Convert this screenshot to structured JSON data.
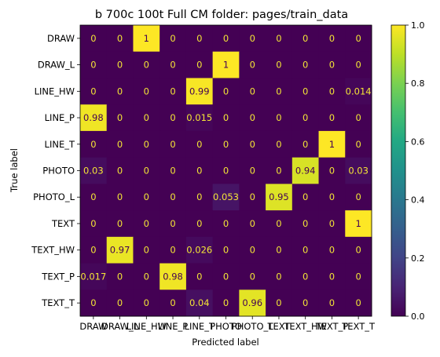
{
  "chart_data": {
    "type": "heatmap",
    "title": "b 700c 100t  Full CM folder: pages/train_data",
    "xlabel": "Predicted label",
    "ylabel": "True label",
    "row_labels": [
      "DRAW",
      "DRAW_L",
      "LINE_HW",
      "LINE_P",
      "LINE_T",
      "PHOTO",
      "PHOTO_L",
      "TEXT",
      "TEXT_HW",
      "TEXT_P",
      "TEXT_T"
    ],
    "col_labels": [
      "DRAW",
      "DRAW_L",
      "LINE_HW",
      "LINE_P",
      "LINE_T",
      "PHOTO",
      "PHOTO_L",
      "TEXT",
      "TEXT_HW",
      "TEXT_P",
      "TEXT_T"
    ],
    "values": [
      [
        0,
        0,
        1,
        0,
        0,
        0,
        0,
        0,
        0,
        0,
        0
      ],
      [
        0,
        0,
        0,
        0,
        0,
        1,
        0,
        0,
        0,
        0,
        0
      ],
      [
        0,
        0,
        0,
        0,
        0.99,
        0,
        0,
        0,
        0,
        0,
        0.014
      ],
      [
        0.98,
        0,
        0,
        0,
        0.015,
        0,
        0,
        0,
        0,
        0,
        0
      ],
      [
        0,
        0,
        0,
        0,
        0,
        0,
        0,
        0,
        0,
        1,
        0
      ],
      [
        0.03,
        0,
        0,
        0,
        0,
        0,
        0,
        0,
        0.94,
        0,
        0.03
      ],
      [
        0,
        0,
        0,
        0,
        0,
        0.053,
        0,
        0.95,
        0,
        0,
        0
      ],
      [
        0,
        0,
        0,
        0,
        0,
        0,
        0,
        0,
        0,
        0,
        1
      ],
      [
        0,
        0.97,
        0,
        0,
        0.026,
        0,
        0,
        0,
        0,
        0,
        0
      ],
      [
        0.017,
        0,
        0,
        0.98,
        0,
        0,
        0,
        0,
        0,
        0,
        0
      ],
      [
        0,
        0,
        0,
        0,
        0.04,
        0,
        0.96,
        0,
        0,
        0,
        0
      ]
    ],
    "cell_text": [
      [
        "0",
        "0",
        "1",
        "0",
        "0",
        "0",
        "0",
        "0",
        "0",
        "0",
        "0"
      ],
      [
        "0",
        "0",
        "0",
        "0",
        "0",
        "1",
        "0",
        "0",
        "0",
        "0",
        "0"
      ],
      [
        "0",
        "0",
        "0",
        "0",
        "0.99",
        "0",
        "0",
        "0",
        "0",
        "0",
        "0.014"
      ],
      [
        "0.98",
        "0",
        "0",
        "0",
        "0.015",
        "0",
        "0",
        "0",
        "0",
        "0",
        "0"
      ],
      [
        "0",
        "0",
        "0",
        "0",
        "0",
        "0",
        "0",
        "0",
        "0",
        "1",
        "0"
      ],
      [
        "0.03",
        "0",
        "0",
        "0",
        "0",
        "0",
        "0",
        "0",
        "0.94",
        "0",
        "0.03"
      ],
      [
        "0",
        "0",
        "0",
        "0",
        "0",
        "0.053",
        "0",
        "0.95",
        "0",
        "0",
        "0"
      ],
      [
        "0",
        "0",
        "0",
        "0",
        "0",
        "0",
        "0",
        "0",
        "0",
        "0",
        "1"
      ],
      [
        "0",
        "0.97",
        "0",
        "0",
        "0.026",
        "0",
        "0",
        "0",
        "0",
        "0",
        "0"
      ],
      [
        "0.017",
        "0",
        "0",
        "0.98",
        "0",
        "0",
        "0",
        "0",
        "0",
        "0",
        "0"
      ],
      [
        "0",
        "0",
        "0",
        "0",
        "0.04",
        "0",
        "0.96",
        "0",
        "0",
        "0",
        "0"
      ]
    ],
    "colorbar": {
      "colormap": "viridis",
      "range": [
        0,
        1
      ],
      "ticks": [
        "0.0",
        "0.2",
        "0.4",
        "0.6",
        "0.8",
        "1.0"
      ]
    },
    "text_color_light": "#f4e536",
    "text_color_dark": "#440154",
    "grid": false
  }
}
